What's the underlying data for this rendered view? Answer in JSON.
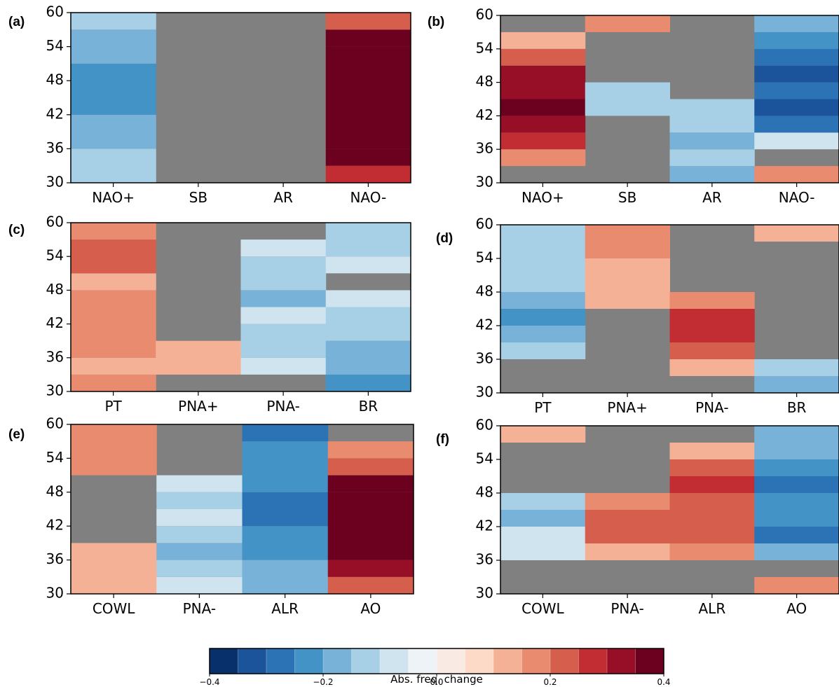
{
  "chart_data": {
    "type": "heatmap",
    "y_ticks": [
      "60",
      "54",
      "48",
      "42",
      "36",
      "30"
    ],
    "ylim": [
      30,
      60
    ],
    "colorbar": {
      "label": "Abs. freq. change",
      "range": [
        -0.4,
        0.4
      ],
      "tick_values": [
        -0.4,
        -0.2,
        0.0,
        0.2,
        0.4
      ],
      "tick_labels": [
        "−0.4",
        "−0.2",
        "0.0",
        "0.2",
        "0.4"
      ],
      "colors": [
        "#08306b",
        "#1c549b",
        "#2c73b6",
        "#4393c6",
        "#78b2d8",
        "#a7cfe5",
        "#d0e4f0",
        "#eef3f7",
        "#faeae4",
        "#fdd9c7",
        "#f5b196",
        "#e98b6f",
        "#d55f4c",
        "#c22d33",
        "#970f26",
        "#6b001f"
      ]
    },
    "panels": [
      {
        "label": "(a)",
        "categories": [
          "NAO+",
          "SB",
          "AR",
          "NAO-"
        ],
        "columns": [
          [
            [
              30,
              36,
              -0.125
            ],
            [
              36,
              42,
              -0.175
            ],
            [
              42,
              51,
              -0.225
            ],
            [
              51,
              57,
              -0.175
            ],
            [
              57,
              60,
              -0.125
            ]
          ],
          [],
          [],
          [
            [
              30,
              33,
              0.275
            ],
            [
              33,
              36,
              0.375
            ],
            [
              36,
              54,
              0.425
            ],
            [
              54,
              57,
              0.375
            ],
            [
              57,
              60,
              0.225
            ]
          ]
        ]
      },
      {
        "label": "(b)",
        "categories": [
          "NAO+",
          "SB",
          "AR",
          "NAO-"
        ],
        "columns": [
          [
            [
              33,
              36,
              0.175
            ],
            [
              36,
              39,
              0.275
            ],
            [
              39,
              42,
              0.325
            ],
            [
              42,
              45,
              0.375
            ],
            [
              45,
              51,
              0.325
            ],
            [
              51,
              54,
              0.225
            ],
            [
              54,
              57,
              0.125
            ]
          ],
          [
            [
              42,
              48,
              -0.125
            ],
            [
              57,
              60,
              0.175
            ]
          ],
          [
            [
              30,
              33,
              -0.175
            ],
            [
              33,
              36,
              -0.125
            ],
            [
              36,
              39,
              -0.175
            ],
            [
              39,
              45,
              -0.125
            ]
          ],
          [
            [
              30,
              33,
              0.175
            ],
            [
              36,
              39,
              -0.075
            ],
            [
              39,
              42,
              -0.275
            ],
            [
              42,
              45,
              -0.325
            ],
            [
              45,
              48,
              -0.275
            ],
            [
              48,
              51,
              -0.325
            ],
            [
              51,
              54,
              -0.275
            ],
            [
              54,
              57,
              -0.225
            ],
            [
              57,
              60,
              -0.175
            ]
          ]
        ]
      },
      {
        "label": "(c)",
        "categories": [
          "PT",
          "PNA+",
          "PNA-",
          "BR"
        ],
        "columns": [
          [
            [
              30,
              33,
              0.175
            ],
            [
              33,
              36,
              0.125
            ],
            [
              36,
              48,
              0.175
            ],
            [
              48,
              51,
              0.125
            ],
            [
              51,
              57,
              0.225
            ],
            [
              57,
              60,
              0.175
            ]
          ],
          [
            [
              33,
              39,
              0.125
            ]
          ],
          [
            [
              33,
              36,
              -0.075
            ],
            [
              36,
              42,
              -0.125
            ],
            [
              42,
              45,
              -0.075
            ],
            [
              45,
              48,
              -0.175
            ],
            [
              48,
              54,
              -0.125
            ],
            [
              54,
              57,
              -0.075
            ]
          ],
          [
            [
              30,
              33,
              -0.225
            ],
            [
              33,
              39,
              -0.175
            ],
            [
              39,
              45,
              -0.125
            ],
            [
              45,
              48,
              -0.075
            ],
            [
              51,
              54,
              -0.075
            ],
            [
              54,
              60,
              -0.125
            ]
          ]
        ]
      },
      {
        "label": "(d)",
        "categories": [
          "PT",
          "PNA+",
          "PNA-",
          "BR"
        ],
        "columns": [
          [
            [
              36,
              39,
              -0.125
            ],
            [
              39,
              42,
              -0.175
            ],
            [
              42,
              45,
              -0.225
            ],
            [
              45,
              48,
              -0.175
            ],
            [
              48,
              60,
              -0.125
            ]
          ],
          [
            [
              45,
              54,
              0.125
            ],
            [
              54,
              60,
              0.175
            ]
          ],
          [
            [
              33,
              36,
              0.125
            ],
            [
              36,
              39,
              0.225
            ],
            [
              39,
              45,
              0.275
            ],
            [
              45,
              48,
              0.175
            ]
          ],
          [
            [
              30,
              33,
              -0.175
            ],
            [
              33,
              36,
              -0.125
            ],
            [
              57,
              60,
              0.125
            ]
          ]
        ]
      },
      {
        "label": "(e)",
        "categories": [
          "COWL",
          "PNA-",
          "ALR",
          "AO"
        ],
        "columns": [
          [
            [
              30,
              39,
              0.125
            ],
            [
              51,
              60,
              0.175
            ]
          ],
          [
            [
              30,
              33,
              -0.075
            ],
            [
              33,
              36,
              -0.125
            ],
            [
              36,
              39,
              -0.175
            ],
            [
              39,
              42,
              -0.125
            ],
            [
              42,
              45,
              -0.075
            ],
            [
              45,
              48,
              -0.125
            ],
            [
              48,
              51,
              -0.075
            ]
          ],
          [
            [
              30,
              36,
              -0.175
            ],
            [
              36,
              42,
              -0.225
            ],
            [
              42,
              48,
              -0.275
            ],
            [
              48,
              57,
              -0.225
            ],
            [
              57,
              60,
              -0.275
            ]
          ],
          [
            [
              30,
              33,
              0.225
            ],
            [
              33,
              36,
              0.325
            ],
            [
              36,
              48,
              0.425
            ],
            [
              48,
              51,
              0.375
            ],
            [
              51,
              54,
              0.225
            ],
            [
              54,
              57,
              0.175
            ]
          ]
        ]
      },
      {
        "label": "(f)",
        "categories": [
          "COWL",
          "PNA-",
          "ALR",
          "AO"
        ],
        "columns": [
          [
            [
              36,
              42,
              -0.075
            ],
            [
              42,
              45,
              -0.175
            ],
            [
              45,
              48,
              -0.125
            ],
            [
              57,
              60,
              0.125
            ]
          ],
          [
            [
              36,
              39,
              0.125
            ],
            [
              39,
              45,
              0.225
            ],
            [
              45,
              48,
              0.175
            ]
          ],
          [
            [
              36,
              39,
              0.175
            ],
            [
              39,
              48,
              0.225
            ],
            [
              48,
              51,
              0.275
            ],
            [
              51,
              54,
              0.225
            ],
            [
              54,
              57,
              0.125
            ]
          ],
          [
            [
              30,
              33,
              0.175
            ],
            [
              36,
              39,
              -0.175
            ],
            [
              39,
              42,
              -0.275
            ],
            [
              42,
              48,
              -0.225
            ],
            [
              48,
              51,
              -0.275
            ],
            [
              51,
              54,
              -0.225
            ],
            [
              54,
              60,
              -0.175
            ]
          ]
        ]
      }
    ]
  }
}
